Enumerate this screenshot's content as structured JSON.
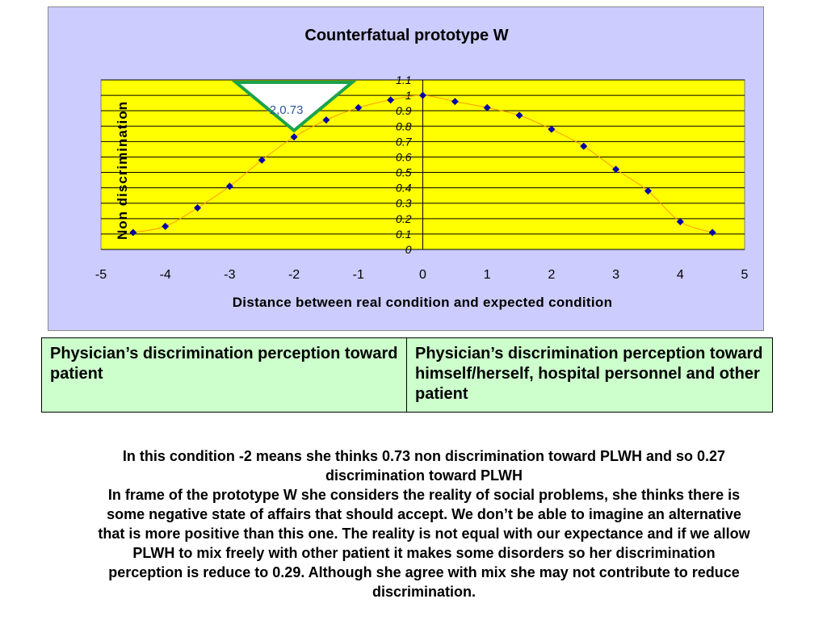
{
  "colors": {
    "panel_background": "#ccccff",
    "plot_background": "#ffff00",
    "marker": "#0000aa",
    "line": "#ff9900",
    "annotation_outline": "#1aa34a",
    "annotation_text": "#2f5597",
    "legend_background": "#ccffcc"
  },
  "chart_data": {
    "type": "scatter",
    "title": "Counterfatual prototype W",
    "xlabel": "Distance between real condition and expected condition",
    "ylabel": "Non discrimination",
    "xlim": [
      -5,
      5
    ],
    "ylim": [
      0,
      1.1
    ],
    "x_ticks": [
      "-5",
      "-4",
      "-3",
      "-2",
      "-1",
      "0",
      "1",
      "2",
      "3",
      "4",
      "5"
    ],
    "y_ticks": [
      "0",
      "0.1",
      "0.2",
      "0.3",
      "0.4",
      "0.5",
      "0.6",
      "0.7",
      "0.8",
      "0.9",
      "1",
      "1.1"
    ],
    "gridlines": "horizontal",
    "smooth_line": true,
    "marker": "diamond",
    "points": [
      [
        -4.5,
        0.11
      ],
      [
        -4.0,
        0.15
      ],
      [
        -3.5,
        0.27
      ],
      [
        -3.0,
        0.41
      ],
      [
        -2.5,
        0.58
      ],
      [
        -2.0,
        0.73
      ],
      [
        -1.5,
        0.84
      ],
      [
        -1.0,
        0.92
      ],
      [
        -0.5,
        0.97
      ],
      [
        0.0,
        1.0
      ],
      [
        0.5,
        0.96
      ],
      [
        1.0,
        0.92
      ],
      [
        1.5,
        0.87
      ],
      [
        2.0,
        0.78
      ],
      [
        2.5,
        0.67
      ],
      [
        3.0,
        0.52
      ],
      [
        3.5,
        0.38
      ],
      [
        4.0,
        0.18
      ],
      [
        4.5,
        0.11
      ]
    ],
    "annotations": [
      {
        "text": "-2,0.73",
        "x": -2,
        "y": 0.73,
        "shape": "inverted-triangle"
      }
    ]
  },
  "legend_table": {
    "left": "Physician’s discrimination perception toward patient",
    "right": "Physician’s discrimination perception toward himself/herself, hospital personnel and other patient"
  },
  "explanation": {
    "line1": "In this condition -2 means she thinks 0.73 non discrimination toward PLWH  and so 0.27 discrimination toward PLWH",
    "line2": "In frame of the prototype W she considers the reality of social problems, she thinks there is some negative state of affairs that should accept. We don’t be able to imagine an alternative that is more positive than this one. The reality is not equal with our expectance and if we allow PLWH to mix freely with other patient it makes some disorders so her discrimination perception is reduce to  0.29. Although she agree with mix she may not contribute to reduce discrimination."
  }
}
